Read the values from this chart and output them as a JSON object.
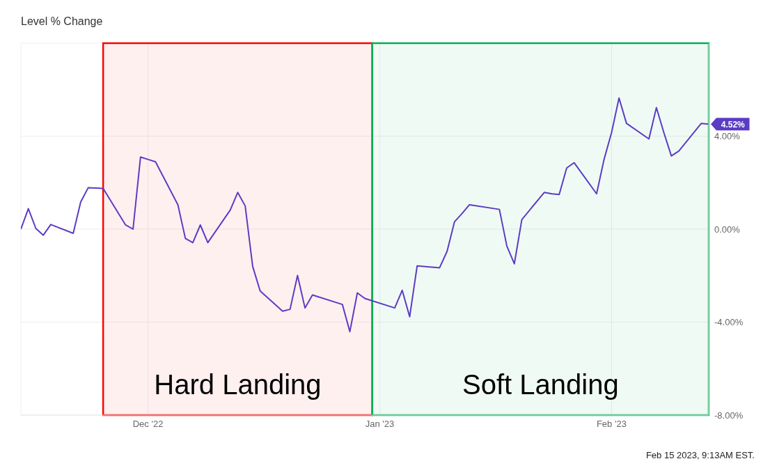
{
  "chart_data": {
    "type": "line",
    "title": "Level % Change",
    "x": [
      "2022-11-14",
      "2022-11-15",
      "2022-11-16",
      "2022-11-17",
      "2022-11-18",
      "2022-11-21",
      "2022-11-22",
      "2022-11-23",
      "2022-11-25",
      "2022-11-28",
      "2022-11-29",
      "2022-11-30",
      "2022-12-01",
      "2022-12-02",
      "2022-12-05",
      "2022-12-06",
      "2022-12-07",
      "2022-12-08",
      "2022-12-09",
      "2022-12-12",
      "2022-12-13",
      "2022-12-14",
      "2022-12-15",
      "2022-12-16",
      "2022-12-19",
      "2022-12-20",
      "2022-12-21",
      "2022-12-22",
      "2022-12-23",
      "2022-12-27",
      "2022-12-28",
      "2022-12-29",
      "2022-12-30",
      "2023-01-03",
      "2023-01-04",
      "2023-01-05",
      "2023-01-06",
      "2023-01-09",
      "2023-01-10",
      "2023-01-11",
      "2023-01-12",
      "2023-01-13",
      "2023-01-17",
      "2023-01-18",
      "2023-01-19",
      "2023-01-20",
      "2023-01-23",
      "2023-01-24",
      "2023-01-25",
      "2023-01-26",
      "2023-01-27",
      "2023-01-30",
      "2023-01-31",
      "2023-02-01",
      "2023-02-02",
      "2023-02-03",
      "2023-02-06",
      "2023-02-07",
      "2023-02-08",
      "2023-02-09",
      "2023-02-10",
      "2023-02-13",
      "2023-02-14"
    ],
    "series": [
      {
        "color": "#5b3cc4",
        "values": [
          0.0,
          0.88,
          0.03,
          -0.26,
          0.2,
          -0.18,
          1.17,
          1.78,
          1.75,
          0.18,
          0.0,
          3.1,
          3.0,
          2.9,
          1.05,
          -0.4,
          -0.58,
          0.18,
          -0.58,
          0.82,
          1.58,
          1.0,
          -1.6,
          -2.66,
          -3.53,
          -3.45,
          -1.99,
          -3.39,
          -2.83,
          -3.24,
          -4.41,
          -2.74,
          -2.98,
          -3.39,
          -2.63,
          -3.77,
          -1.58,
          -1.66,
          -0.96,
          0.32,
          0.67,
          1.05,
          0.85,
          -0.73,
          -1.49,
          0.41,
          1.58,
          1.52,
          1.49,
          2.63,
          2.86,
          1.52,
          3.0,
          4.15,
          5.64,
          4.55,
          3.88,
          5.23,
          4.15,
          3.15,
          3.36,
          4.55,
          4.52
        ],
        "value_labels": [
          null,
          null,
          null,
          null,
          null,
          null,
          null,
          null,
          null,
          null,
          null,
          null,
          null,
          null,
          null,
          null,
          null,
          null,
          null,
          null,
          null,
          null,
          null,
          null,
          null,
          null,
          null,
          null,
          null,
          null,
          null,
          null,
          null,
          null,
          null,
          null,
          null,
          null,
          null,
          null,
          null,
          null,
          null,
          null,
          null,
          null,
          null,
          null,
          null,
          null,
          null,
          null,
          null,
          null,
          null,
          null,
          null,
          null,
          null,
          null,
          null,
          null,
          "4.52%"
        ]
      }
    ],
    "xlim": [
      "2022-11-14",
      "2023-02-14"
    ],
    "xticks": [
      {
        "value": "2022-12-01",
        "label": "Dec '22"
      },
      {
        "value": "2023-01-01",
        "label": "Jan '23"
      },
      {
        "value": "2023-02-01",
        "label": "Feb '23"
      }
    ],
    "ylim": [
      -8,
      8
    ],
    "yticks": [
      {
        "value": -8,
        "label": "-8.00%"
      },
      {
        "value": -4,
        "label": "-4.00%"
      },
      {
        "value": 0,
        "label": "0.00%"
      },
      {
        "value": 4,
        "label": "4.00%"
      }
    ],
    "bands": [
      {
        "axis": "x",
        "from": "2022-11-25",
        "to": "2022-12-31",
        "label": "Hard Landing",
        "color": "#ff0000"
      },
      {
        "axis": "x",
        "from": "2022-12-31",
        "to": "2023-02-14",
        "label": "Soft Landing",
        "color": "#00b050"
      }
    ],
    "grid": true,
    "marker": "none",
    "line_style": "solid",
    "annotations": [
      "Feb 15 2023, 9:13AM EST."
    ]
  }
}
